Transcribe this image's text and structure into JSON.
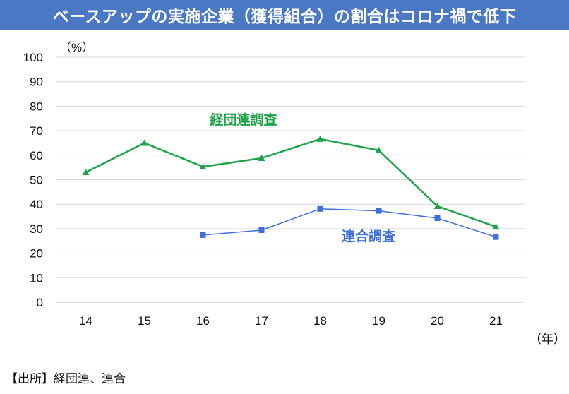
{
  "header": {
    "title": "ベースアップの実施企業（獲得組合）の割合はコロナ禍で低下"
  },
  "source": "【出所】経団連、連合",
  "chart_data": {
    "type": "line",
    "title": "ベースアップの実施企業（獲得組合）の割合はコロナ禍で低下",
    "ylabel": "（%）",
    "xlabel": "（年）",
    "ylim": [
      0,
      100
    ],
    "yticks": [
      0,
      10,
      20,
      30,
      40,
      50,
      60,
      70,
      80,
      90,
      100
    ],
    "grid": true,
    "categories": [
      "14",
      "15",
      "16",
      "17",
      "18",
      "19",
      "20",
      "21"
    ],
    "series": [
      {
        "name": "経団連調査",
        "color": "#1fa34a",
        "marker": "triangle",
        "values": [
          53,
          65,
          55.3,
          58.8,
          66.6,
          62,
          39.2,
          30.8
        ]
      },
      {
        "name": "連合調査",
        "color": "#3f6fdc",
        "marker": "square",
        "values": [
          null,
          null,
          27.4,
          29.4,
          38.1,
          37.3,
          34.3,
          26.6
        ]
      }
    ]
  }
}
